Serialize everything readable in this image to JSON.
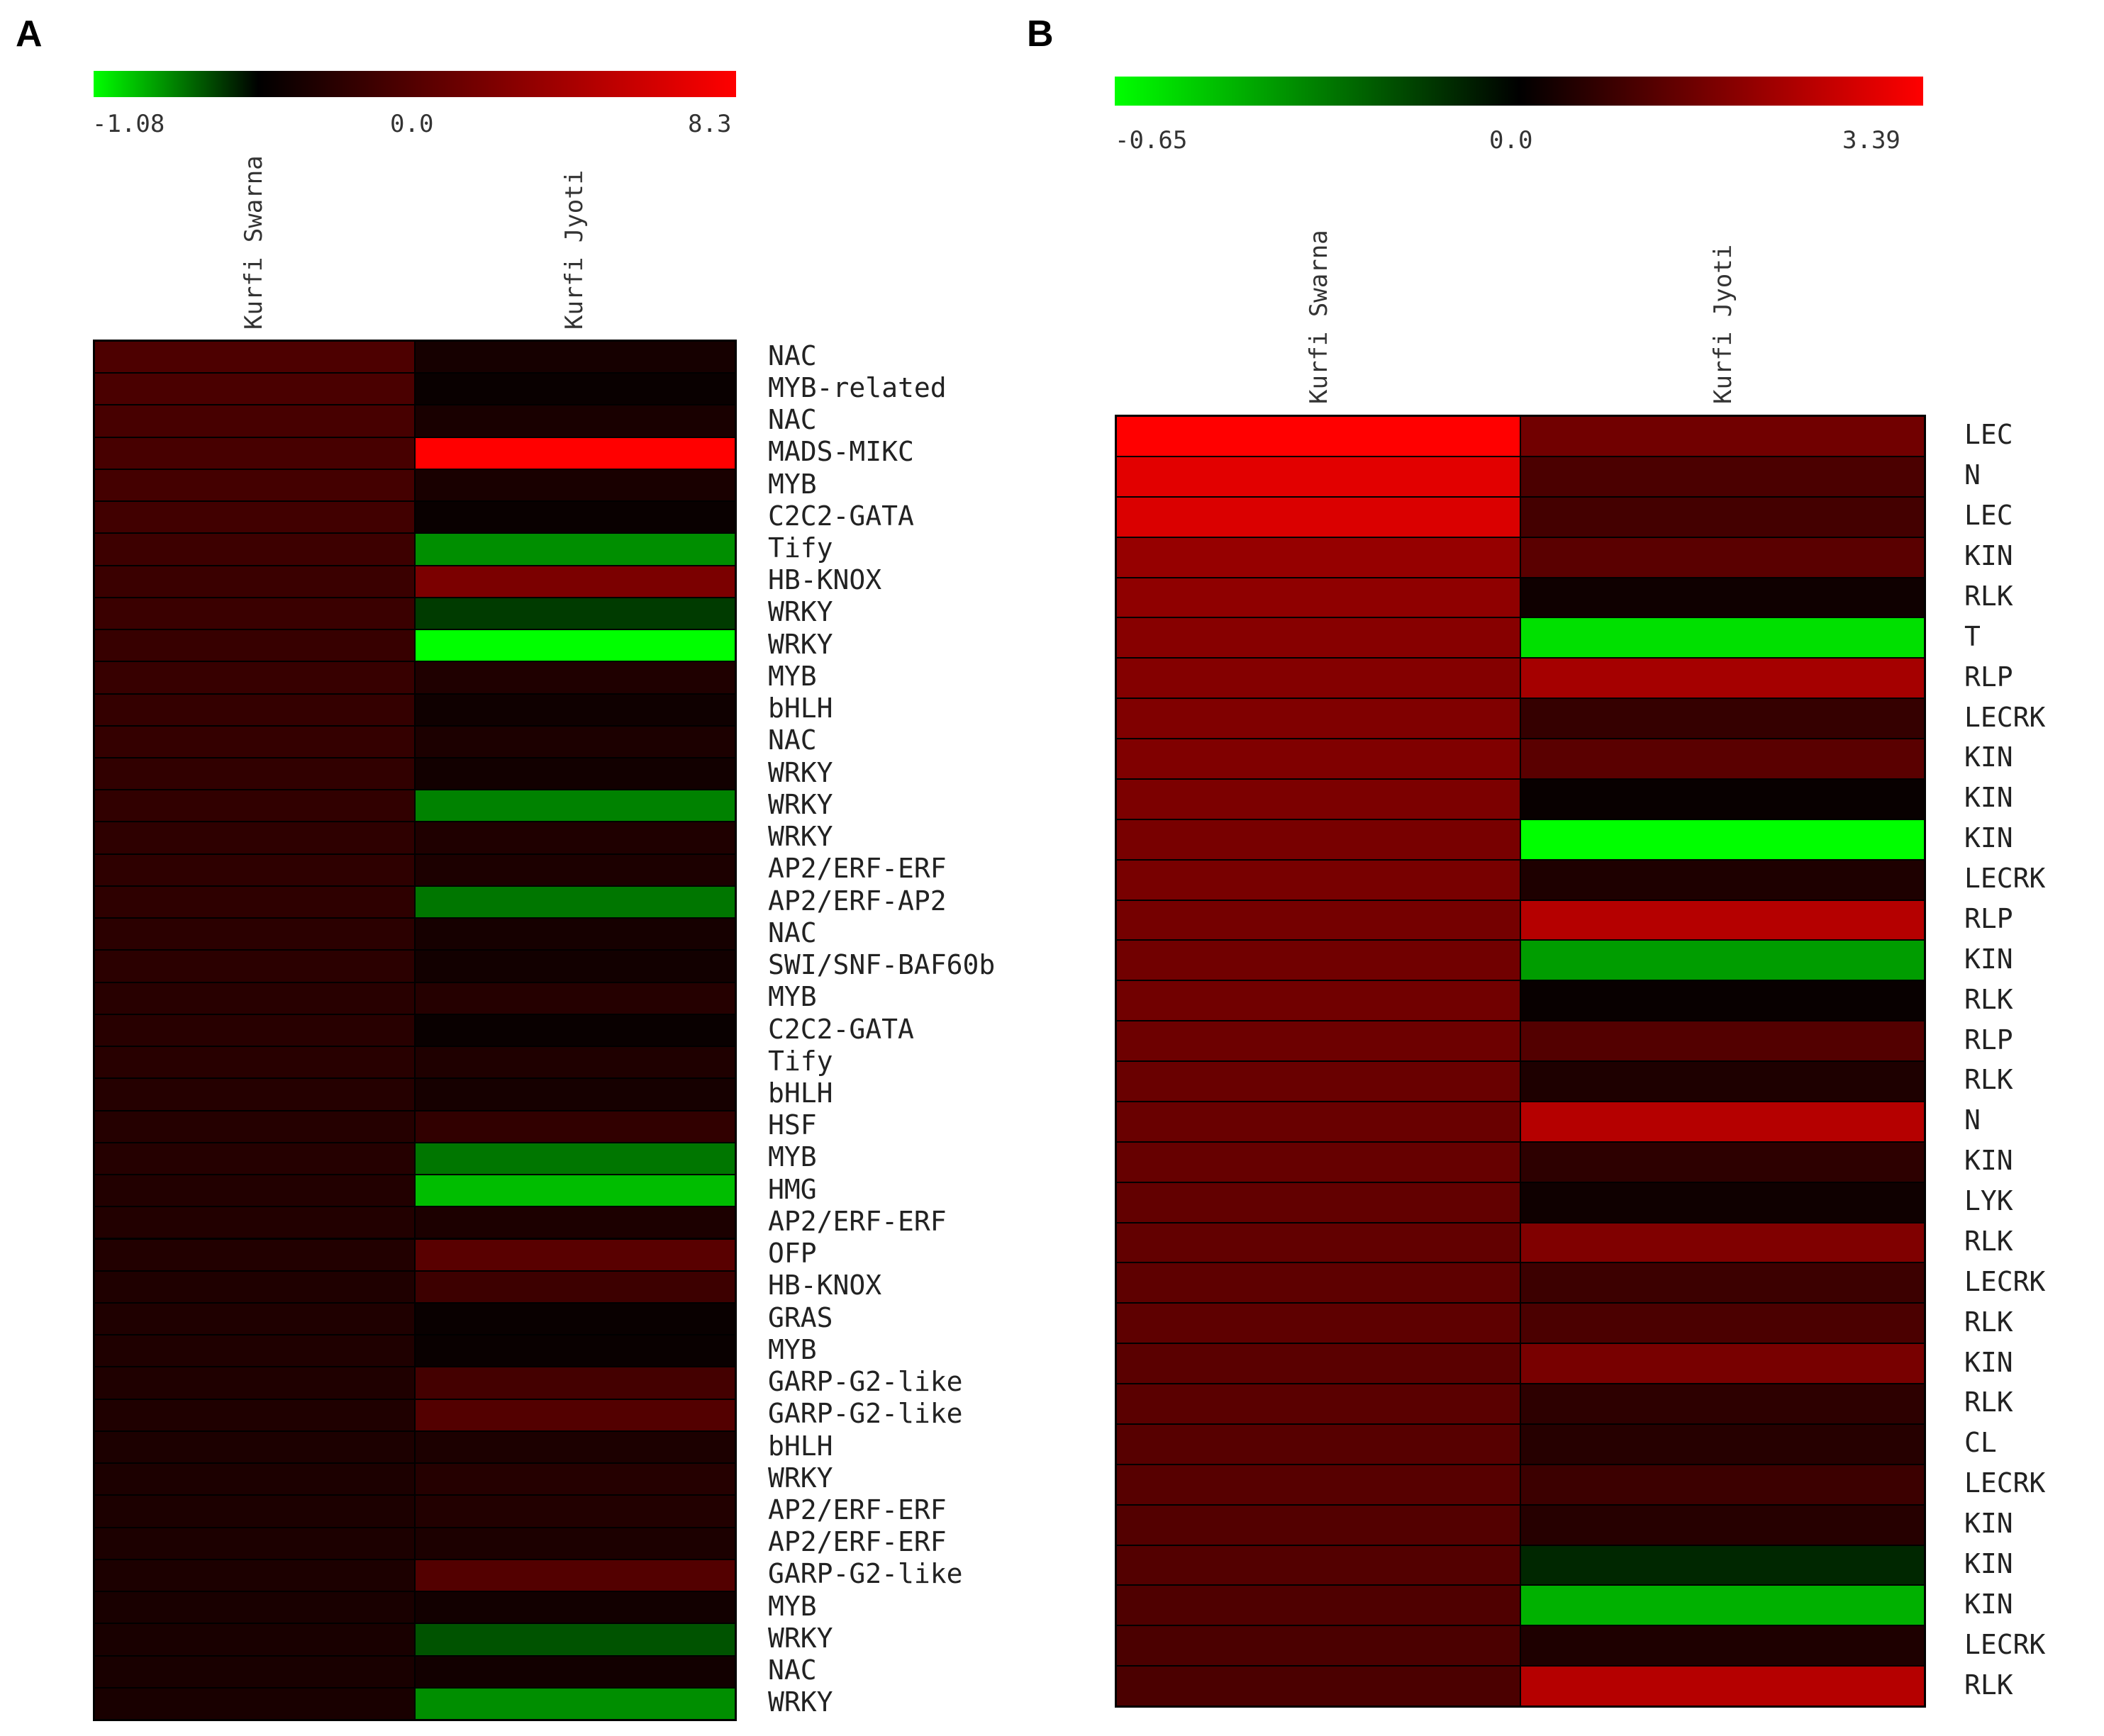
{
  "chart_data": [
    {
      "type": "heatmap",
      "panel": "A",
      "colorbar": {
        "min": -1.08,
        "mid": 0.0,
        "max": 8.3,
        "tick_labels": [
          "-1.08",
          "0.0",
          "8.3"
        ],
        "colors": {
          "low": "#00ff00",
          "mid": "#000000",
          "high": "#ff0000"
        }
      },
      "columns": [
        "Kurfi Swarna",
        "Kurfi Jyoti"
      ],
      "rows": [
        "NAC",
        "MYB-related",
        "NAC",
        "MADS-MIKC",
        "MYB",
        "C2C2-GATA",
        "Tify",
        "HB-KNOX",
        "WRKY",
        "WRKY",
        "MYB",
        "bHLH",
        "NAC",
        "WRKY",
        "WRKY",
        "WRKY",
        "AP2/ERF-ERF",
        "AP2/ERF-AP2",
        "NAC",
        "SWI/SNF-BAF60b",
        "MYB",
        "C2C2-GATA",
        "Tify",
        "bHLH",
        "HSF",
        "MYB",
        "HMG",
        "AP2/ERF-ERF",
        "OFP",
        "HB-KNOX",
        "GRAS",
        "MYB",
        "GARP-G2-like",
        "GARP-G2-like",
        "bHLH",
        "WRKY",
        "AP2/ERF-ERF",
        "AP2/ERF-ERF",
        "GARP-G2-like",
        "MYB",
        "WRKY",
        "NAC",
        "WRKY"
      ],
      "values": [
        [
          2.5,
          0.7
        ],
        [
          2.4,
          0.3
        ],
        [
          2.3,
          0.8
        ],
        [
          2.3,
          8.3
        ],
        [
          2.2,
          0.8
        ],
        [
          2.1,
          0.3
        ],
        [
          2.0,
          -0.6
        ],
        [
          1.9,
          4.0
        ],
        [
          1.9,
          -0.25
        ],
        [
          1.8,
          -1.08
        ],
        [
          1.8,
          1.0
        ],
        [
          1.7,
          0.5
        ],
        [
          1.7,
          0.9
        ],
        [
          1.6,
          0.6
        ],
        [
          1.6,
          -0.55
        ],
        [
          1.5,
          1.0
        ],
        [
          1.5,
          0.9
        ],
        [
          1.5,
          -0.5
        ],
        [
          1.4,
          0.7
        ],
        [
          1.4,
          0.6
        ],
        [
          1.3,
          1.2
        ],
        [
          1.3,
          0.3
        ],
        [
          1.3,
          1.0
        ],
        [
          1.2,
          0.7
        ],
        [
          1.2,
          1.6
        ],
        [
          1.2,
          -0.5
        ],
        [
          1.1,
          -0.8
        ],
        [
          1.1,
          0.9
        ],
        [
          1.1,
          2.9
        ],
        [
          1.0,
          2.0
        ],
        [
          1.0,
          0.3
        ],
        [
          1.0,
          0.3
        ],
        [
          1.0,
          2.2
        ],
        [
          1.0,
          2.7
        ],
        [
          0.9,
          0.9
        ],
        [
          0.9,
          1.2
        ],
        [
          0.9,
          1.1
        ],
        [
          0.9,
          0.9
        ],
        [
          0.9,
          2.7
        ],
        [
          0.8,
          0.6
        ],
        [
          0.8,
          -0.35
        ],
        [
          0.8,
          0.6
        ],
        [
          0.8,
          -0.6
        ]
      ]
    },
    {
      "type": "heatmap",
      "panel": "B",
      "colorbar": {
        "min": -0.65,
        "mid": 0.0,
        "max": 3.39,
        "tick_labels": [
          "-0.65",
          "0.0",
          "3.39"
        ],
        "colors": {
          "low": "#00ff00",
          "mid": "#000000",
          "high": "#ff0000"
        }
      },
      "columns": [
        "Kurfi Swarna",
        "Kurfi Jyoti"
      ],
      "rows": [
        "LEC",
        "N",
        "LEC",
        "KIN",
        "RLK",
        "T",
        "RLP",
        "LECRK",
        "KIN",
        "KIN",
        "KIN",
        "LECRK",
        "RLP",
        "KIN",
        "RLK",
        "RLP",
        "RLK",
        "N",
        "KIN",
        "LYK",
        "RLK",
        "LECRK",
        "RLK",
        "KIN",
        "RLK",
        "CL",
        "LECRK",
        "KIN",
        "KIN",
        "KIN",
        "LECRK",
        "RLK"
      ],
      "values": [
        [
          3.39,
          1.5
        ],
        [
          3.0,
          1.0
        ],
        [
          2.9,
          0.9
        ],
        [
          2.0,
          1.2
        ],
        [
          1.9,
          0.2
        ],
        [
          1.8,
          -0.57
        ],
        [
          1.75,
          2.2
        ],
        [
          1.7,
          0.7
        ],
        [
          1.7,
          1.2
        ],
        [
          1.65,
          0.1
        ],
        [
          1.6,
          -0.65
        ],
        [
          1.6,
          0.4
        ],
        [
          1.55,
          2.4
        ],
        [
          1.5,
          -0.4
        ],
        [
          1.5,
          0.1
        ],
        [
          1.45,
          1.1
        ],
        [
          1.4,
          0.4
        ],
        [
          1.4,
          2.4
        ],
        [
          1.35,
          0.6
        ],
        [
          1.3,
          0.2
        ],
        [
          1.3,
          1.7
        ],
        [
          1.25,
          0.8
        ],
        [
          1.25,
          1.0
        ],
        [
          1.2,
          1.6
        ],
        [
          1.2,
          0.6
        ],
        [
          1.15,
          0.5
        ],
        [
          1.15,
          0.8
        ],
        [
          1.1,
          0.5
        ],
        [
          1.1,
          -0.1
        ],
        [
          1.05,
          -0.45
        ],
        [
          1.0,
          0.4
        ],
        [
          1.0,
          2.4
        ]
      ]
    }
  ]
}
